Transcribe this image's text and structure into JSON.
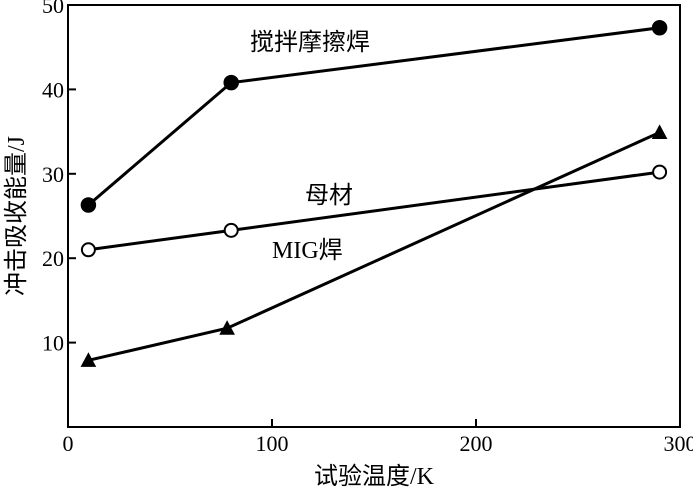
{
  "chart_data": {
    "type": "line",
    "title": "",
    "xlabel": "试验温度/K",
    "ylabel": "冲击吸收能量/J",
    "xlim": [
      0,
      300
    ],
    "ylim": [
      0,
      50
    ],
    "xticks": [
      0,
      100,
      200,
      300
    ],
    "yticks": [
      10,
      20,
      30,
      40,
      50
    ],
    "grid": false,
    "series": [
      {
        "name": "搅拌摩擦焊",
        "marker": "filled-circle",
        "x": [
          10,
          80,
          290
        ],
        "y": [
          26.3,
          40.8,
          47.3
        ]
      },
      {
        "name": "母材",
        "marker": "open-circle",
        "x": [
          10,
          80,
          290
        ],
        "y": [
          21.0,
          23.3,
          30.2
        ]
      },
      {
        "name": "MIG焊",
        "marker": "filled-triangle",
        "x": [
          10,
          78,
          290
        ],
        "y": [
          7.9,
          11.7,
          34.9
        ]
      }
    ]
  }
}
